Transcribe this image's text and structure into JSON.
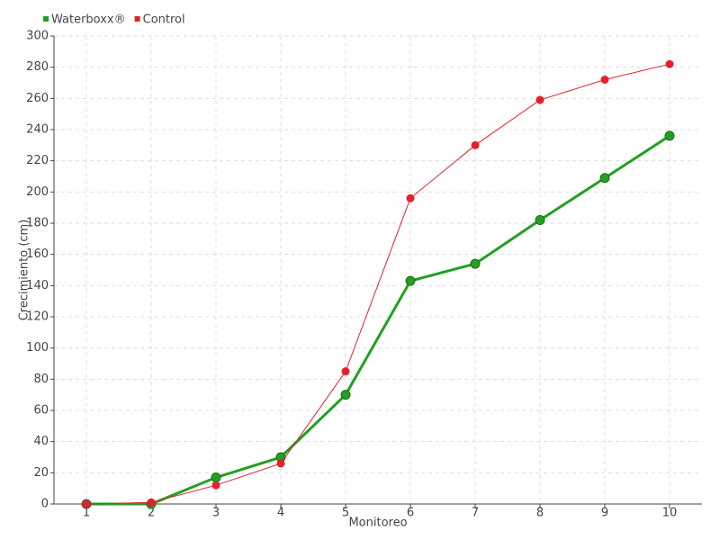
{
  "chart_data": {
    "type": "line",
    "xlabel": "Monitoreo",
    "ylabel": "Crecimiento (cm)",
    "categories": [
      "1",
      "2",
      "3",
      "4",
      "5",
      "6",
      "7",
      "8",
      "9",
      "10"
    ],
    "series": [
      {
        "name": "Waterboxx®",
        "color": "#22a022",
        "values": [
          0,
          0,
          17,
          30,
          70,
          143,
          154,
          182,
          209,
          236
        ]
      },
      {
        "name": "Control",
        "color": "#e3202c",
        "values": [
          0,
          1,
          12,
          26,
          85,
          196,
          230,
          259,
          272,
          282
        ]
      }
    ],
    "ylim": [
      0,
      300
    ],
    "yticks": [
      0,
      20,
      40,
      60,
      80,
      100,
      120,
      140,
      160,
      180,
      200,
      220,
      240,
      260,
      280,
      300
    ],
    "grid": true,
    "legend": "top-left"
  }
}
